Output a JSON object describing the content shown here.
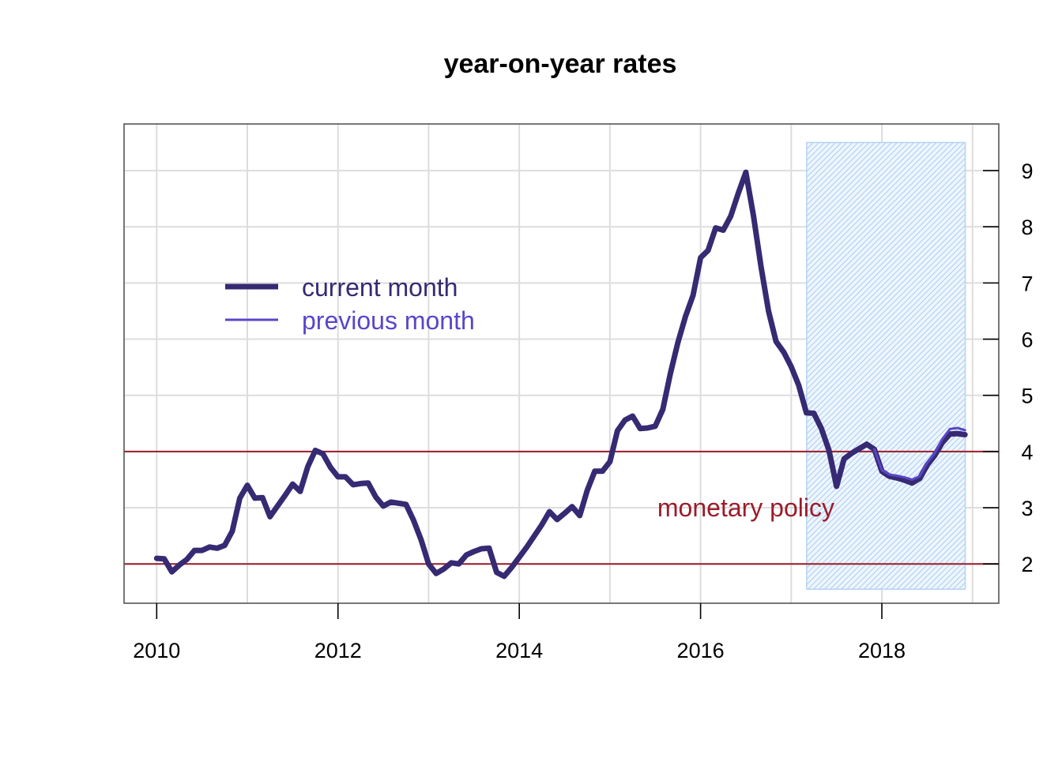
{
  "chart_data": {
    "type": "line",
    "title": "year-on-year rates",
    "xlabel": "",
    "ylabel": "",
    "xlim": [
      2009.64,
      2019.29
    ],
    "ylim": [
      1.3,
      9.83
    ],
    "x_ticks": [
      2010,
      2012,
      2014,
      2016,
      2018
    ],
    "y_ticks": [
      2,
      3,
      4,
      5,
      6,
      7,
      8,
      9
    ],
    "y_axis_side": "right",
    "grid": true,
    "legend_position": "top-left",
    "colors": {
      "current": "#362a73",
      "previous": "#5a46c8",
      "policy": "#9b1c2a",
      "shade": "#9cc6f0",
      "grid": "#dddddd",
      "frame": "#555555"
    },
    "reference_lines": [
      2,
      4
    ],
    "annotation": "monetary policy",
    "shaded_region": {
      "x_start": 2017.17,
      "x_end": 2018.92,
      "y_start": 1.55,
      "y_end": 9.5
    },
    "series": [
      {
        "name": "current month",
        "x": [
          2010.0,
          2010.083,
          2010.167,
          2010.25,
          2010.333,
          2010.417,
          2010.5,
          2010.583,
          2010.667,
          2010.75,
          2010.833,
          2010.917,
          2011.0,
          2011.083,
          2011.167,
          2011.25,
          2011.333,
          2011.417,
          2011.5,
          2011.583,
          2011.667,
          2011.75,
          2011.833,
          2011.917,
          2012.0,
          2012.083,
          2012.167,
          2012.25,
          2012.333,
          2012.417,
          2012.5,
          2012.583,
          2012.667,
          2012.75,
          2012.833,
          2012.917,
          2013.0,
          2013.083,
          2013.167,
          2013.25,
          2013.333,
          2013.417,
          2013.5,
          2013.583,
          2013.667,
          2013.75,
          2013.833,
          2013.917,
          2014.0,
          2014.083,
          2014.167,
          2014.25,
          2014.333,
          2014.417,
          2014.5,
          2014.583,
          2014.667,
          2014.75,
          2014.833,
          2014.917,
          2015.0,
          2015.083,
          2015.167,
          2015.25,
          2015.333,
          2015.417,
          2015.5,
          2015.583,
          2015.667,
          2015.75,
          2015.833,
          2015.917,
          2016.0,
          2016.083,
          2016.167,
          2016.25,
          2016.333,
          2016.417,
          2016.5,
          2016.583,
          2016.667,
          2016.75,
          2016.833,
          2016.917,
          2017.0,
          2017.083,
          2017.167,
          2017.25,
          2017.333,
          2017.417,
          2017.5,
          2017.583,
          2017.667,
          2017.75,
          2017.833,
          2017.917,
          2018.0,
          2018.083,
          2018.167,
          2018.25,
          2018.333,
          2018.417,
          2018.5,
          2018.583,
          2018.667,
          2018.75,
          2018.833,
          2018.917
        ],
        "values": [
          2.1,
          2.09,
          1.86,
          1.98,
          2.08,
          2.24,
          2.24,
          2.3,
          2.28,
          2.33,
          2.58,
          3.17,
          3.4,
          3.17,
          3.18,
          2.84,
          3.03,
          3.22,
          3.42,
          3.29,
          3.73,
          4.02,
          3.96,
          3.72,
          3.55,
          3.55,
          3.41,
          3.43,
          3.44,
          3.19,
          3.03,
          3.1,
          3.08,
          3.06,
          2.78,
          2.43,
          2.0,
          1.83,
          1.91,
          2.02,
          2.0,
          2.16,
          2.22,
          2.27,
          2.28,
          1.85,
          1.78,
          1.94,
          2.12,
          2.3,
          2.5,
          2.7,
          2.93,
          2.79,
          2.9,
          3.02,
          2.86,
          3.31,
          3.65,
          3.65,
          3.82,
          4.37,
          4.56,
          4.63,
          4.41,
          4.42,
          4.45,
          4.75,
          5.39,
          5.94,
          6.4,
          6.78,
          7.45,
          7.58,
          7.98,
          7.94,
          8.19,
          8.6,
          8.97,
          8.2,
          7.29,
          6.5,
          5.96,
          5.77,
          5.51,
          5.18,
          4.69,
          4.68,
          4.41,
          4.02,
          3.38,
          3.87,
          3.97,
          4.05,
          4.13,
          4.04,
          3.65,
          3.56,
          3.53,
          3.49,
          3.44,
          3.52,
          3.76,
          3.93,
          4.16,
          4.31,
          4.32,
          4.3
        ]
      },
      {
        "name": "previous month",
        "x": [
          2017.917,
          2018.0,
          2018.083,
          2018.167,
          2018.25,
          2018.333,
          2018.417,
          2018.5,
          2018.583,
          2018.667,
          2018.75,
          2018.833,
          2018.917
        ],
        "values": [
          4.04,
          3.67,
          3.59,
          3.57,
          3.54,
          3.5,
          3.56,
          3.8,
          3.97,
          4.22,
          4.4,
          4.42,
          4.38
        ]
      }
    ]
  }
}
